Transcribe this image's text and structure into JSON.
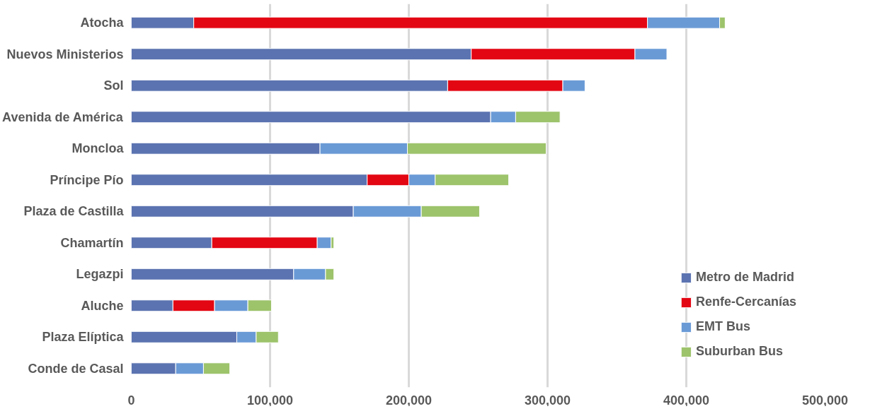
{
  "chart_data": {
    "type": "bar",
    "orientation": "horizontal",
    "stacked": true,
    "categories": [
      "Atocha",
      "Nuevos Ministerios",
      "Sol",
      "Avenida de América",
      "Moncloa",
      "Príncipe Pío",
      "Plaza de Castilla",
      "Chamartín",
      "Legazpi",
      "Aluche",
      "Plaza Elíptica",
      "Conde de Casal"
    ],
    "series": [
      {
        "name": "Metro de Madrid",
        "color": "#5b73b0",
        "values": [
          45000,
          245000,
          228000,
          259000,
          136000,
          170000,
          160000,
          58000,
          117000,
          30000,
          76000,
          32000
        ]
      },
      {
        "name": "Renfe-Cercanías",
        "color": "#e30613",
        "values": [
          327000,
          118000,
          83000,
          null,
          null,
          30000,
          null,
          76000,
          null,
          30000,
          null,
          null
        ]
      },
      {
        "name": "EMT Bus",
        "color": "#6a9ad6",
        "values": [
          52000,
          23000,
          16000,
          18000,
          63000,
          19000,
          49000,
          10000,
          23000,
          24000,
          14000,
          20000
        ]
      },
      {
        "name": "Suburban Bus",
        "color": "#9dc36b",
        "values": [
          4000,
          null,
          null,
          32000,
          100000,
          53000,
          42000,
          2000,
          6000,
          17000,
          16000,
          19000
        ]
      }
    ],
    "xlim": [
      0,
      500000
    ],
    "xticks": [
      {
        "value": 0,
        "label": "0"
      },
      {
        "value": 100000,
        "label": "100,000"
      },
      {
        "value": 200000,
        "label": "200,000"
      },
      {
        "value": 300000,
        "label": "300,000"
      },
      {
        "value": 400000,
        "label": "400,000"
      },
      {
        "value": 500000,
        "label": "500,000"
      }
    ],
    "grid": "x",
    "legend": "bottom right"
  }
}
